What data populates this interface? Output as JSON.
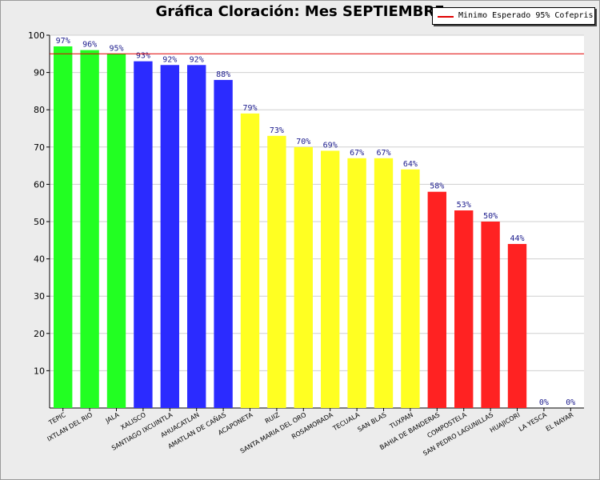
{
  "chart_data": {
    "type": "bar",
    "title": "Gráfica Cloración: Mes SEPTIEMBRE",
    "xlabel": "",
    "ylabel": "",
    "ylim": [
      0,
      100
    ],
    "yticks": [
      10,
      20,
      30,
      40,
      50,
      60,
      70,
      80,
      90,
      100
    ],
    "grid": true,
    "categories": [
      "TEPIC",
      "IXTLAN DEL RIO",
      "JALA",
      "XALISCO",
      "SANTIAGO IXCUINTLA",
      "AHUACATLAN",
      "AMATLAN DE CAÑAS",
      "ACAPONETA",
      "RUIZ",
      "SANTA MARIA DEL ORO",
      "ROSAMORADA",
      "TECUALA",
      "SAN BLAS",
      "TUXPAN",
      "BAHIA DE BANDERAS",
      "COMPOSTELA",
      "SAN PEDRO LAGUNILLAS",
      "HUAJICORI",
      "LA YESCA",
      "EL NAYAR"
    ],
    "values": [
      97,
      96,
      95,
      93,
      92,
      92,
      88,
      79,
      73,
      70,
      69,
      67,
      67,
      64,
      58,
      53,
      50,
      44,
      0,
      0
    ],
    "data_labels": [
      "97%",
      "96%",
      "95%",
      "93%",
      "92%",
      "92%",
      "88%",
      "79%",
      "73%",
      "70%",
      "69%",
      "67%",
      "67%",
      "64%",
      "58%",
      "53%",
      "50%",
      "44%",
      "0%",
      "0%"
    ],
    "bar_colors": [
      "#22ff22",
      "#22ff22",
      "#22ff22",
      "#2b2bff",
      "#2b2bff",
      "#2b2bff",
      "#2b2bff",
      "#ffff22",
      "#ffff22",
      "#ffff22",
      "#ffff22",
      "#ffff22",
      "#ffff22",
      "#ffff22",
      "#ff2222",
      "#ff2222",
      "#ff2222",
      "#ff2222",
      "#ff2222",
      "#ff2222"
    ],
    "reference_line": {
      "value": 95,
      "label": "Minimo Esperado 95% Cofepris",
      "color": "#e00000"
    },
    "legend_position": "top-right"
  }
}
